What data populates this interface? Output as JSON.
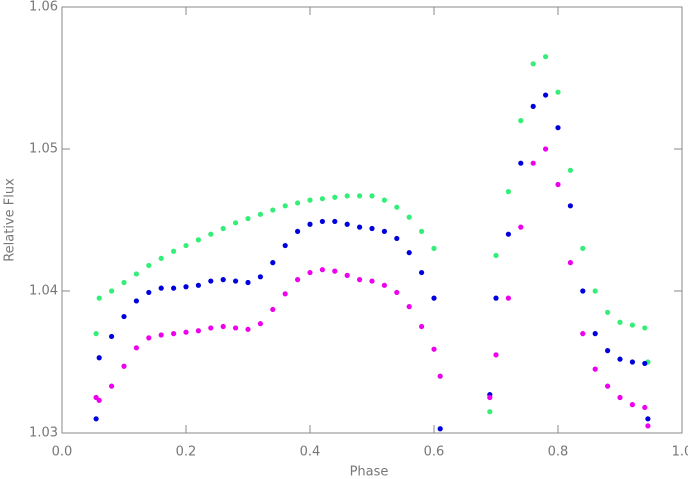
{
  "chart_data": {
    "type": "scatter",
    "xlabel": "Phase",
    "ylabel": "Relative Flux",
    "x": [
      0.055,
      0.06,
      0.08,
      0.1,
      0.12,
      0.14,
      0.16,
      0.18,
      0.2,
      0.22,
      0.24,
      0.26,
      0.28,
      0.3,
      0.32,
      0.34,
      0.36,
      0.38,
      0.4,
      0.42,
      0.44,
      0.46,
      0.48,
      0.5,
      0.52,
      0.54,
      0.56,
      0.58,
      0.6,
      0.61,
      0.69,
      0.7,
      0.72,
      0.74,
      0.76,
      0.78,
      0.8,
      0.82,
      0.84,
      0.86,
      0.88,
      0.9,
      0.92,
      0.94,
      0.945
    ],
    "series": [
      {
        "color": "#33ee77",
        "values": [
          1.037,
          1.0395,
          1.04,
          1.0406,
          1.0412,
          1.0418,
          1.0423,
          1.0428,
          1.0432,
          1.0436,
          1.044,
          1.0444,
          1.0448,
          1.0451,
          1.0454,
          1.0457,
          1.046,
          1.0462,
          1.0464,
          1.0465,
          1.0466,
          1.0467,
          1.0467,
          1.0467,
          1.0464,
          1.0459,
          1.0452,
          1.0442,
          1.043,
          1.034,
          1.0315,
          1.0425,
          1.047,
          1.052,
          1.056,
          1.0565,
          1.054,
          1.0485,
          1.043,
          1.04,
          1.0385,
          1.0378,
          1.0376,
          1.0374,
          1.035
        ]
      },
      {
        "color": "#0000dd",
        "values": [
          1.031,
          1.0353,
          1.0368,
          1.0382,
          1.0393,
          1.0399,
          1.0402,
          1.0402,
          1.0403,
          1.0404,
          1.0407,
          1.0408,
          1.0407,
          1.0406,
          1.041,
          1.042,
          1.0432,
          1.0442,
          1.0447,
          1.0449,
          1.0449,
          1.0447,
          1.0445,
          1.0444,
          1.0442,
          1.0437,
          1.0427,
          1.0413,
          1.0395,
          1.0303,
          1.0327,
          1.0395,
          1.044,
          1.049,
          1.053,
          1.0538,
          1.0515,
          1.046,
          1.04,
          1.037,
          1.0358,
          1.0352,
          1.035,
          1.0349,
          1.031
        ]
      },
      {
        "color": "#ee00ee",
        "values": [
          1.0325,
          1.0323,
          1.0333,
          1.0347,
          1.036,
          1.0367,
          1.0369,
          1.037,
          1.0371,
          1.0372,
          1.0374,
          1.0375,
          1.0374,
          1.0373,
          1.0377,
          1.0387,
          1.0398,
          1.0408,
          1.0413,
          1.0415,
          1.0414,
          1.0411,
          1.0408,
          1.0407,
          1.0404,
          1.0399,
          1.0389,
          1.0375,
          1.0359,
          1.034,
          1.0325,
          1.0355,
          1.0395,
          1.0445,
          1.049,
          1.05,
          1.0475,
          1.042,
          1.037,
          1.0345,
          1.0333,
          1.0325,
          1.032,
          1.0318,
          1.0305
        ]
      }
    ],
    "xlim": [
      0,
      1
    ],
    "ylim": [
      1.03,
      1.06
    ],
    "xticks": [
      {
        "value": 0,
        "label": "0.0"
      },
      0.2,
      0.4,
      0.6,
      0.8,
      {
        "value": 1,
        "label": "1.0"
      }
    ],
    "yticks": [
      1.03,
      1.04,
      1.05,
      1.06
    ]
  }
}
